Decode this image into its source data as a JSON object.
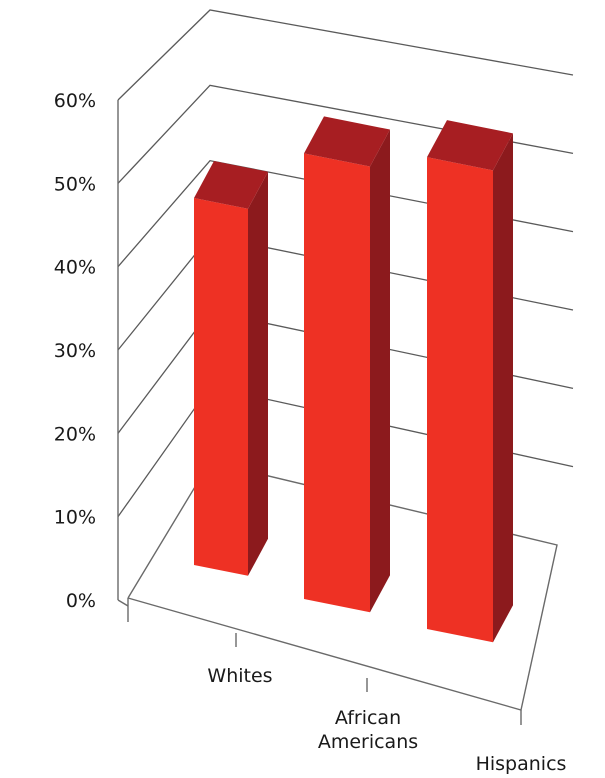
{
  "chart_data": {
    "type": "bar",
    "categories": [
      "Whites",
      "African Americans",
      "Hispanics"
    ],
    "category_lines": [
      [
        "Whites"
      ],
      [
        "African",
        "Americans"
      ],
      [
        "Hispanics"
      ]
    ],
    "values": [
      42,
      51,
      54
    ],
    "ylim": [
      0,
      60
    ],
    "yticks": [
      "0%",
      "10%",
      "20%",
      "30%",
      "40%",
      "50%",
      "60%"
    ],
    "grid": true,
    "legend": "none",
    "colors": {
      "front": "#ee3124",
      "top": "#a71e22",
      "side": "#8c1a1d"
    }
  }
}
